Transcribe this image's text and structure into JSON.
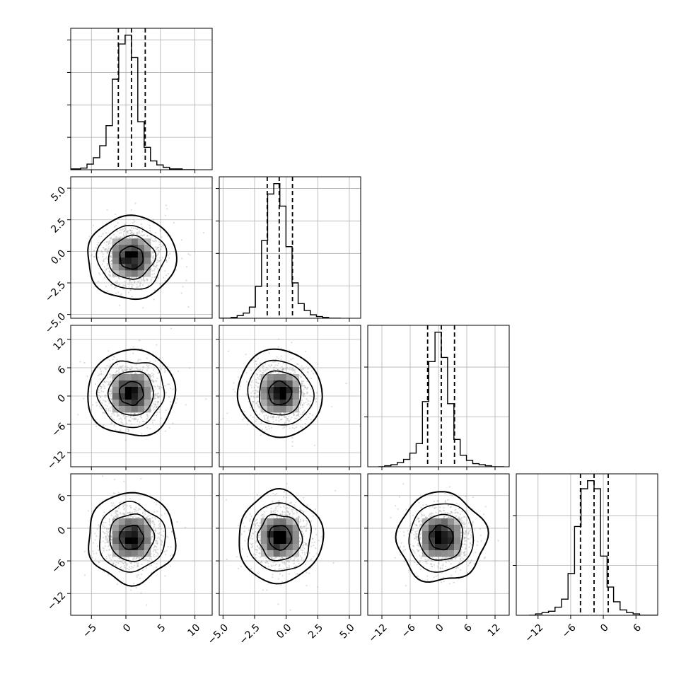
{
  "chart_data": {
    "type": "corner",
    "style": {
      "frame_color": "#000000",
      "grid_color": "#b0b0b0",
      "scatter_color": "#9a9a9a",
      "hist_color": "#000000",
      "density_dark": "#000000",
      "grid": true
    },
    "variables": [
      {
        "range": [
          -8,
          12.5
        ],
        "ticks": [
          -5,
          0,
          5,
          10
        ],
        "tick_labels": [
          "−5",
          "0",
          "5",
          "10"
        ],
        "center": 0.8,
        "sigma": 2.0,
        "quantiles": [
          -1.1,
          0.8,
          2.8
        ]
      },
      {
        "range": [
          -5.3,
          5.9
        ],
        "ticks": [
          -5,
          -2.5,
          0,
          2.5,
          5
        ],
        "tick_labels": [
          "−5.0",
          "−2.5",
          "0.0",
          "2.5",
          "5.0"
        ],
        "center": -0.5,
        "sigma": 1.05,
        "quantiles": [
          -1.5,
          -0.55,
          0.5
        ]
      },
      {
        "range": [
          -15,
          15
        ],
        "ticks": [
          -12,
          -6,
          0,
          6,
          12
        ],
        "tick_labels": [
          "−12",
          "−6",
          "0",
          "6",
          "12"
        ],
        "center": 0.6,
        "sigma": 2.9,
        "quantiles": [
          -2.3,
          0.6,
          3.4
        ]
      },
      {
        "range": [
          -16,
          10
        ],
        "ticks": [
          -12,
          -6,
          0,
          6
        ],
        "tick_labels": [
          "−12",
          "−6",
          "0",
          "6"
        ],
        "center": -1.7,
        "sigma": 2.6,
        "quantiles": [
          -4.2,
          -1.7,
          0.9
        ]
      }
    ],
    "histograms": [
      {
        "var": 0,
        "counts": [
          1,
          1,
          2,
          7,
          15,
          30,
          55,
          113,
          157,
          168,
          140,
          60,
          28,
          11,
          6,
          3,
          1,
          1,
          0,
          0
        ]
      },
      {
        "var": 1,
        "counts": [
          0,
          0,
          1,
          3,
          6,
          13,
          37,
          90,
          144,
          156,
          130,
          83,
          41,
          17,
          9,
          4,
          2,
          1,
          0,
          0
        ]
      },
      {
        "var": 2,
        "counts": [
          0,
          1,
          2,
          4,
          7,
          13,
          22,
          62,
          100,
          128,
          104,
          60,
          26,
          11,
          6,
          3,
          2,
          1,
          0,
          0
        ]
      },
      {
        "var": 3,
        "counts": [
          0,
          1,
          2,
          3,
          6,
          12,
          31,
          66,
          94,
          100,
          94,
          44,
          21,
          10,
          4,
          2,
          1,
          0,
          0,
          0
        ]
      }
    ],
    "pairs": [
      {
        "x": 0,
        "y": 1
      },
      {
        "x": 0,
        "y": 2
      },
      {
        "x": 1,
        "y": 2
      },
      {
        "x": 0,
        "y": 3
      },
      {
        "x": 1,
        "y": 3
      },
      {
        "x": 2,
        "y": 3
      }
    ],
    "histogram_bins": 20,
    "scatter_points_per_panel": 1400,
    "contour_levels_sigma": [
      0.55,
      1.05,
      1.55,
      2.05
    ]
  }
}
